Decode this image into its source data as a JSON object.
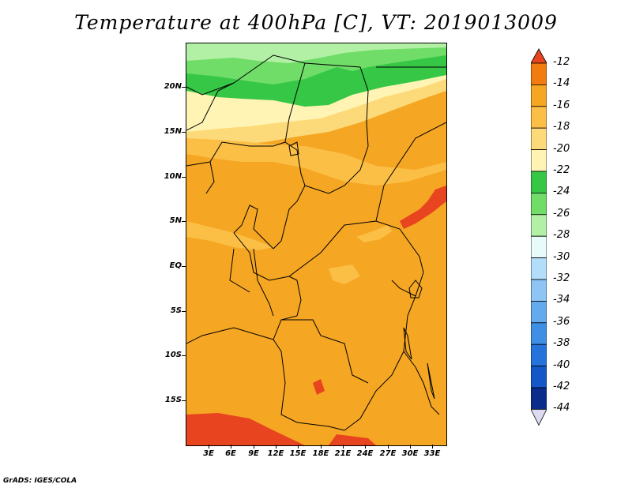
{
  "title": "Temperature at 400hPa [C], VT: 2019013009",
  "footer": "GrADS: IGES/COLA",
  "map": {
    "lat_labels": [
      "20N",
      "15N",
      "10N",
      "5N",
      "EQ",
      "5S",
      "10S",
      "15S"
    ],
    "lon_labels": [
      "3E",
      "6E",
      "9E",
      "12E",
      "15E",
      "18E",
      "21E",
      "24E",
      "27E",
      "30E",
      "33E"
    ]
  },
  "colorbar": {
    "labels": [
      "-12",
      "-14",
      "-16",
      "-18",
      "-20",
      "-22",
      "-24",
      "-26",
      "-28",
      "-30",
      "-32",
      "-34",
      "-36",
      "-38",
      "-40",
      "-42",
      "-44"
    ],
    "colors": [
      "#e8441f",
      "#f27c0f",
      "#f5a623",
      "#fbbf46",
      "#fdda79",
      "#fff4b3",
      "#36c747",
      "#6fdd68",
      "#b2f1a5",
      "#e8fbfb",
      "#b3def9",
      "#8ec5f4",
      "#66aaee",
      "#3f8fe4",
      "#2673dc",
      "#1457c9",
      "#0a2d8c"
    ],
    "under_color": "#1a1a6e",
    "over_color": "#e8441f",
    "min_end_color": "#dcdcf0"
  }
}
